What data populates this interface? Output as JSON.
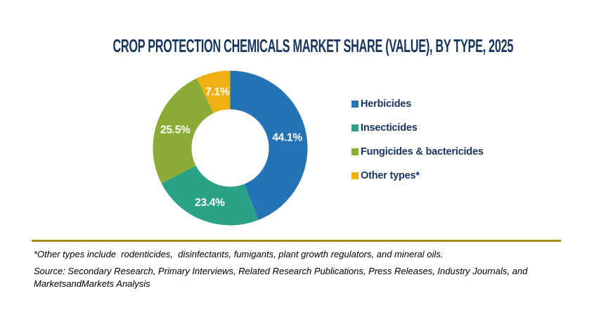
{
  "title": "CROP PROTECTION CHEMICALS MARKET SHARE (VALUE), BY TYPE, 2025",
  "chart_data": {
    "type": "pie",
    "variant": "donut",
    "title": "CROP PROTECTION CHEMICALS MARKET SHARE (VALUE), BY TYPE, 2025",
    "categories": [
      "Herbicides",
      "Insecticides",
      "Fungicides & bactericides",
      "Other types*"
    ],
    "values": [
      44.1,
      23.4,
      25.5,
      7.1
    ],
    "labels": [
      "44.1%",
      "23.4%",
      "25.5%",
      "7.1%"
    ],
    "colors": [
      "#2473b4",
      "#29a287",
      "#8aab35",
      "#eeb111"
    ],
    "start_angle_deg": 0,
    "direction": "clockwise",
    "inner_radius_ratio": 0.5,
    "legend_position": "right",
    "slice_label_color": "#ffffff"
  },
  "legend": {
    "items": [
      {
        "label": "Herbicides",
        "color": "#2473b4"
      },
      {
        "label": "Insecticides",
        "color": "#29a287"
      },
      {
        "label": "Fungicides & bactericides",
        "color": "#8aab35"
      },
      {
        "label": "Other types*",
        "color": "#eeb111"
      }
    ]
  },
  "footnote": "*Other types include  rodenticides,  disinfectants, fumigants, plant growth regulators, and mineral oils.",
  "source": "Source: Secondary Research, Primary Interviews, Related Research Publications, Press Releases, Industry Journals, and MarketsandMarkets Analysis",
  "colors": {
    "title_text": "#17365d",
    "legend_text": "#17365d",
    "divider": "#a98a1b",
    "background": "#ffffff"
  }
}
